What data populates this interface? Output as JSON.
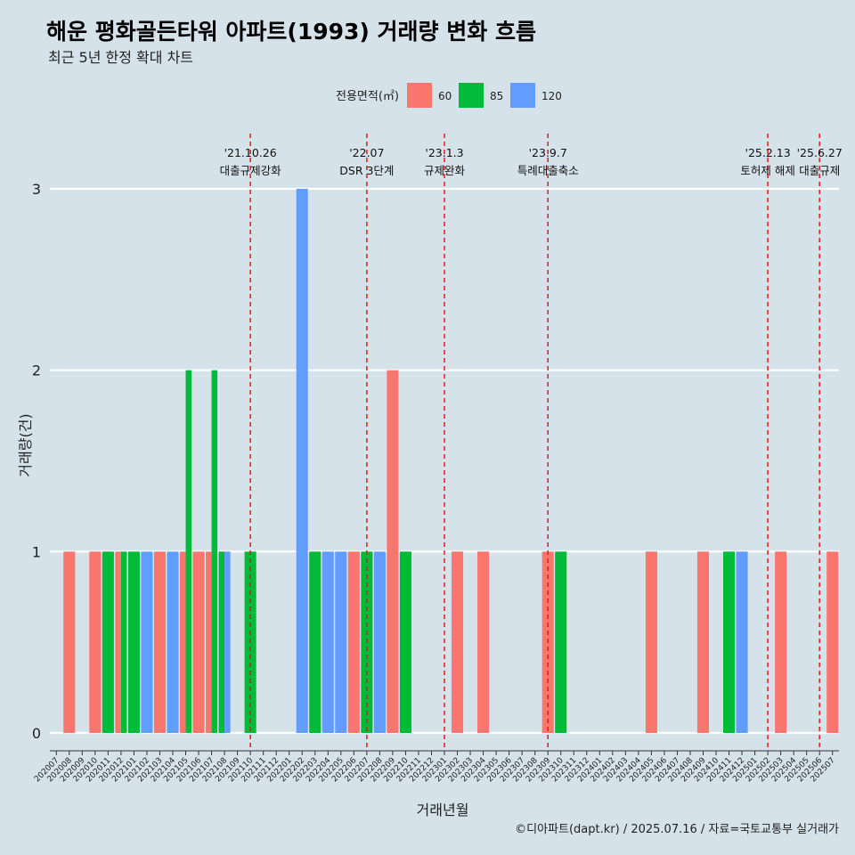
{
  "header": {
    "title": "해운 평화골든타워 아파트(1993) 거래량 변화 흐름",
    "subtitle": "최근 5년 한정 확대 차트"
  },
  "caption": "©디아파트(dapt.kr) / 2025.07.16 / 자료=국토교통부 실거래가",
  "legend": {
    "title": "전용면적(㎡)",
    "items": [
      {
        "label": "60",
        "color": "#f8766d"
      },
      {
        "label": "85",
        "color": "#00ba38"
      },
      {
        "label": "120",
        "color": "#619cff"
      }
    ]
  },
  "chart_data": {
    "type": "bar",
    "xlabel": "거래년월",
    "ylabel": "거래량(건)",
    "ylim": [
      0,
      3
    ],
    "y_ticks": [
      0,
      1,
      2,
      3
    ],
    "grid": "horizontal",
    "legend_position": "top",
    "categories": [
      "202007",
      "202008",
      "202009",
      "202010",
      "202011",
      "202012",
      "202101",
      "202102",
      "202103",
      "202104",
      "202105",
      "202106",
      "202107",
      "202108",
      "202109",
      "202110",
      "202111",
      "202112",
      "202201",
      "202202",
      "202203",
      "202204",
      "202205",
      "202206",
      "202207",
      "202208",
      "202209",
      "202210",
      "202211",
      "202212",
      "202301",
      "202302",
      "202303",
      "202304",
      "202305",
      "202306",
      "202307",
      "202308",
      "202309",
      "202310",
      "202311",
      "202312",
      "202401",
      "202402",
      "202403",
      "202404",
      "202405",
      "202406",
      "202407",
      "202408",
      "202409",
      "202410",
      "202411",
      "202412",
      "202501",
      "202502",
      "202503",
      "202504",
      "202505",
      "202506",
      "202507"
    ],
    "series": [
      {
        "name": "60",
        "color": "#f8766d",
        "points": [
          [
            "202008",
            1
          ],
          [
            "202010",
            1
          ],
          [
            "202012",
            1
          ],
          [
            "202103",
            1
          ],
          [
            "202105",
            1
          ],
          [
            "202106",
            1
          ],
          [
            "202107",
            1
          ],
          [
            "202206",
            1
          ],
          [
            "202209",
            2
          ],
          [
            "202302",
            1
          ],
          [
            "202304",
            1
          ],
          [
            "202309",
            1
          ],
          [
            "202405",
            1
          ],
          [
            "202409",
            1
          ],
          [
            "202503",
            1
          ],
          [
            "202507",
            1
          ]
        ]
      },
      {
        "name": "85",
        "color": "#00ba38",
        "points": [
          [
            "202011",
            1
          ],
          [
            "202012",
            1
          ],
          [
            "202101",
            1
          ],
          [
            "202105",
            2
          ],
          [
            "202107",
            2
          ],
          [
            "202108",
            1
          ],
          [
            "202110",
            1
          ],
          [
            "202203",
            1
          ],
          [
            "202207",
            1
          ],
          [
            "202210",
            1
          ],
          [
            "202310",
            1
          ],
          [
            "202411",
            1
          ]
        ]
      },
      {
        "name": "120",
        "color": "#619cff",
        "points": [
          [
            "202102",
            1
          ],
          [
            "202104",
            1
          ],
          [
            "202108",
            1
          ],
          [
            "202202",
            3
          ],
          [
            "202204",
            1
          ],
          [
            "202205",
            1
          ],
          [
            "202208",
            1
          ],
          [
            "202412",
            1
          ]
        ]
      }
    ],
    "events": [
      {
        "x": "202110",
        "date": "'21.10.26",
        "label": "대출규제강화"
      },
      {
        "x": "202207",
        "date": "'22.07",
        "label": "DSR 3단계"
      },
      {
        "x": "202301",
        "date": "'23.1.3",
        "label": "규제완화"
      },
      {
        "x": "202309",
        "date": "'23.9.7",
        "label": "특례대출축소"
      },
      {
        "x": "202502",
        "date": "'25.2.13",
        "label": "토허제 해제"
      },
      {
        "x": "202506",
        "date": "'25.6.27",
        "label": "대출규제"
      }
    ]
  }
}
